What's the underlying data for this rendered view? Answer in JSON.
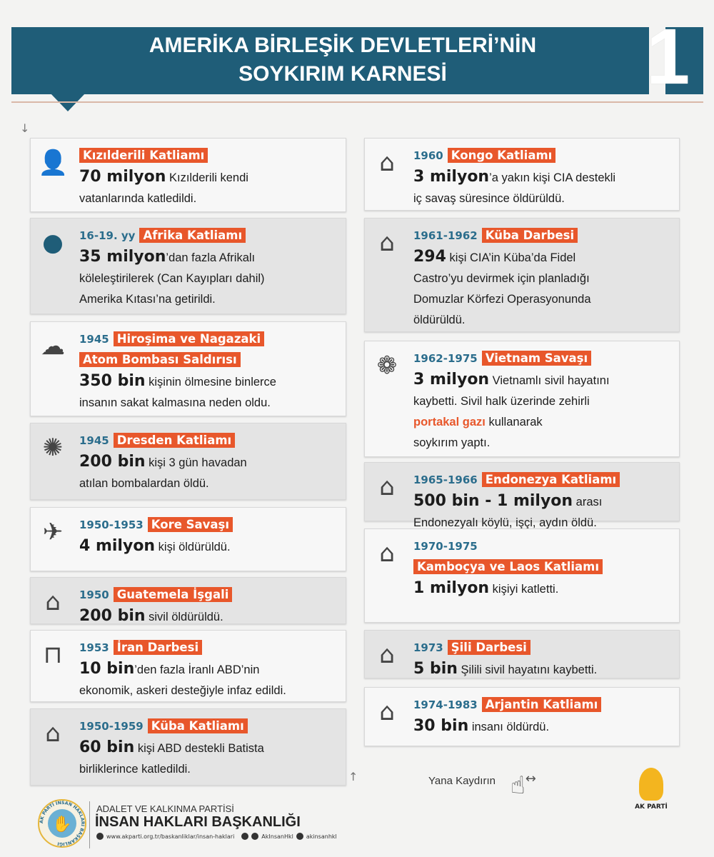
{
  "header": {
    "title_line1": "AMERİKA BİRLEŞİK DEVLETLERİ’NİN",
    "title_line2": "SOYKIRIM KARNESİ",
    "page_number": "1",
    "accent": "#1f5d78",
    "highlight": "#e8572b"
  },
  "left": [
    {
      "icon": "native-american-icon",
      "year": "",
      "title": [
        "Kızılderili Katliamı"
      ],
      "lines": [
        [
          {
            "t": "70 milyon",
            "s": "b"
          },
          {
            "t": " Kızılderili kendi"
          }
        ],
        [
          {
            "t": "vatanlarında katledildi."
          }
        ]
      ]
    },
    {
      "icon": "head-silhouette-icon",
      "year": "16-19. yy",
      "title": [
        "Afrika Katliamı"
      ],
      "lines": [
        [
          {
            "t": "35 milyon",
            "s": "b"
          },
          {
            "t": "’dan fazla  Afrikalı"
          }
        ],
        [
          {
            "t": "köleleştirilerek (Can Kayıpları dahil)"
          }
        ],
        [
          {
            "t": "Amerika Kıtası’na getirildi."
          }
        ]
      ]
    },
    {
      "icon": "mushroom-cloud-icon",
      "year": "1945",
      "title": [
        "Hiroşima ve Nagazaki",
        "Atom Bombası Saldırısı"
      ],
      "lines": [
        [
          {
            "t": "350 bin",
            "s": "b"
          },
          {
            "t": " kişinin ölmesine binlerce"
          }
        ],
        [
          {
            "t": "insanın sakat kalmasına neden oldu."
          }
        ]
      ]
    },
    {
      "icon": "bombs-icon",
      "year": "1945",
      "title": [
        "Dresden Katliamı"
      ],
      "lines": [
        [
          {
            "t": "200 bin",
            "s": "b"
          },
          {
            "t": " kişi 3 gün havadan"
          }
        ],
        [
          {
            "t": "atılan bombalardan öldü."
          }
        ]
      ]
    },
    {
      "icon": "warplane-icon",
      "year": "1950-1953",
      "title": [
        "Kore Savaşı"
      ],
      "lines": [
        [
          {
            "t": "4 milyon",
            "s": "b"
          },
          {
            "t": " kişi öldürüldü."
          }
        ]
      ]
    },
    {
      "icon": "gravestone-icon",
      "year": "1950",
      "title": [
        "Guatemela İşgali"
      ],
      "lines": [
        [
          {
            "t": "200 bin",
            "s": "b"
          },
          {
            "t": " sivil öldürüldü."
          }
        ]
      ]
    },
    {
      "icon": "gallows-icon",
      "year": "1953",
      "title": [
        "İran Darbesi"
      ],
      "lines": [
        [
          {
            "t": "10 bin",
            "s": "b"
          },
          {
            "t": "’den fazla İranlı ABD’nin"
          }
        ],
        [
          {
            "t": "ekonomik, askeri desteğiyle infaz edildi."
          }
        ]
      ]
    },
    {
      "icon": "gravestone-icon",
      "year": "1950-1959",
      "title": [
        "Küba Katliamı"
      ],
      "lines": [
        [
          {
            "t": "60 bin",
            "s": "b"
          },
          {
            "t": " kişi ABD destekli Batista"
          }
        ],
        [
          {
            "t": "birliklerince katledildi."
          }
        ]
      ]
    }
  ],
  "right": [
    {
      "icon": "gravestone-icon",
      "year": "1960",
      "title": [
        "Kongo Katliamı"
      ],
      "lines": [
        [
          {
            "t": "3 milyon",
            "s": "b"
          },
          {
            "t": "’a yakın kişi CIA destekli"
          }
        ],
        [
          {
            "t": "iç savaş süresince öldürüldü."
          }
        ]
      ]
    },
    {
      "icon": "gravestone-icon",
      "year": "1961-1962",
      "title": [
        "Küba Darbesi"
      ],
      "lines": [
        [
          {
            "t": "294",
            "s": "b"
          },
          {
            "t": " kişi CIA’in Küba’da Fidel"
          }
        ],
        [
          {
            "t": "Castro’yu devirmek için planladığı"
          }
        ],
        [
          {
            "t": "Domuzlar Körfezi Operasyonunda"
          }
        ],
        [
          {
            "t": "öldürüldü."
          }
        ]
      ]
    },
    {
      "icon": "oranges-icon",
      "year": "1962-1975",
      "title": [
        "Vietnam Savaşı"
      ],
      "lines": [
        [
          {
            "t": "3 milyon",
            "s": "b"
          },
          {
            "t": " Vietnamlı sivil hayatını"
          }
        ],
        [
          {
            "t": "kaybetti. Sivil halk üzerinde zehirli"
          }
        ],
        [
          {
            "t": "portakal gazı",
            "s": "o"
          },
          {
            "t": " kullanarak"
          }
        ],
        [
          {
            "t": "soykırım yaptı."
          }
        ]
      ]
    },
    {
      "icon": "gravestone-icon",
      "year": "1965-1966",
      "title": [
        "Endonezya Katliamı"
      ],
      "lines": [
        [
          {
            "t": "500 bin - 1 milyon",
            "s": "b"
          },
          {
            "t": " arası"
          }
        ],
        [
          {
            "t": "Endonezyalı köylü, işçi, aydın öldü."
          }
        ]
      ]
    },
    {
      "icon": "gravestone-icon",
      "year": "1970-1975",
      "title": [
        "",
        "Kamboçya ve Laos Katliamı"
      ],
      "lines": [
        [
          {
            "t": "1 milyon",
            "s": "b"
          },
          {
            "t": " kişiyi katletti."
          }
        ]
      ]
    },
    {
      "icon": "gravestone-icon",
      "year": "1973",
      "title": [
        "Şili Darbesi"
      ],
      "lines": [
        [
          {
            "t": "5 bin",
            "s": "b"
          },
          {
            "t": " Şilili sivil hayatını kaybetti."
          }
        ]
      ]
    },
    {
      "icon": "gravestone-icon",
      "year": "1974-1983",
      "title": [
        "Arjantin Katliamı"
      ],
      "lines": [
        [
          {
            "t": "30 bin",
            "s": "b"
          },
          {
            "t": " insanı öldürdü."
          }
        ]
      ]
    }
  ],
  "footer": {
    "swipe_hint": "Yana Kaydırın",
    "org_line1": "ADALET VE KALKINMA PARTİSİ",
    "org_line2": "İNSAN HAKLARI BAŞKANLIĞI",
    "website": "www.akparti.org.tr/baskanliklar/insan-haklari",
    "twitter_instagram": "AkInsanHkl",
    "facebook": "akinsanhkl",
    "logo_text": "AK PARTİ",
    "badge_text": "AK PARTİ İNSAN HAKLARI BAŞKANLIĞI"
  }
}
